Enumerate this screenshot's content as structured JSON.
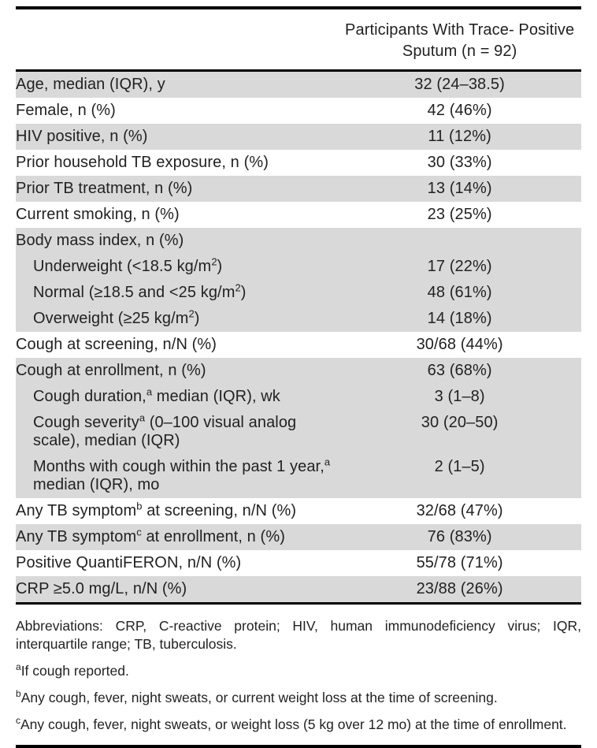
{
  "table": {
    "header": {
      "col2_line1": "Participants With Trace- Positive",
      "col2_line2": "Sputum (n = 92)"
    },
    "rows": [
      {
        "label": "Age, median (IQR), y",
        "value": "32 (24–38.5)"
      },
      {
        "label": "Female, n (%)",
        "value": "42 (46%)"
      },
      {
        "label": "HIV positive, n (%)",
        "value": "11 (12%)"
      },
      {
        "label": "Prior household TB exposure, n (%)",
        "value": "30 (33%)"
      },
      {
        "label": "Prior TB treatment, n (%)",
        "value": "13 (14%)"
      },
      {
        "label": "Current smoking, n (%)",
        "value": "23 (25%)"
      },
      {
        "label": "Body mass index, n (%)",
        "value": ""
      },
      {
        "label_pre": "Underweight (<18.5 kg/m",
        "sup": "2",
        "label_post": ")",
        "value": "17 (22%)"
      },
      {
        "label_pre": "Normal (≥18.5 and <25 kg/m",
        "sup": "2",
        "label_post": ")",
        "value": "48 (61%)"
      },
      {
        "label_pre": "Overweight (≥25 kg/m",
        "sup": "2",
        "label_post": ")",
        "value": "14 (18%)"
      },
      {
        "label": "Cough at screening, n/N (%)",
        "value": "30/68 (44%)"
      },
      {
        "label": "Cough at enrollment, n (%)",
        "value": "63 (68%)"
      },
      {
        "label_pre": "Cough duration,",
        "sup": "a",
        "label_post": " median (IQR), wk",
        "value": "3 (1–8)"
      },
      {
        "label_pre": "Cough severity",
        "sup": "a",
        "label_post": " (0–100 visual analog scale), median (IQR)",
        "value": "30 (20–50)"
      },
      {
        "label_pre": "Months with cough within the past 1 year,",
        "sup": "a",
        "label_post": " median (IQR), mo",
        "value": "2 (1–5)"
      },
      {
        "label_pre": "Any TB symptom",
        "sup": "b",
        "label_post": " at screening, n/N (%)",
        "value": "32/68 (47%)"
      },
      {
        "label_pre": "Any TB symptom",
        "sup": "c",
        "label_post": " at enrollment, n (%)",
        "value": "76 (83%)"
      },
      {
        "label": "Positive QuantiFERON, n/N (%)",
        "value": "55/78 (71%)"
      },
      {
        "label": "CRP ≥5.0 mg/L, n/N (%)",
        "value": "23/88 (26%)"
      }
    ]
  },
  "footnotes": {
    "abbreviations": "Abbreviations: CRP, C-reactive protein; HIV, human immunodeficiency virus; IQR, interquartile range; TB, tuberculosis.",
    "a_marker": "a",
    "a_text": "If cough reported.",
    "b_marker": "b",
    "b_text": "Any cough, fever, night sweats, or current weight loss at the time of screening.",
    "c_marker": "c",
    "c_text": "Any cough, fever, night sweats, or weight loss (5 kg over 12 mo) at the time of enrollment."
  },
  "colors": {
    "row_shade": "#d9d9d9",
    "rule": "#000000",
    "text": "#222222"
  }
}
